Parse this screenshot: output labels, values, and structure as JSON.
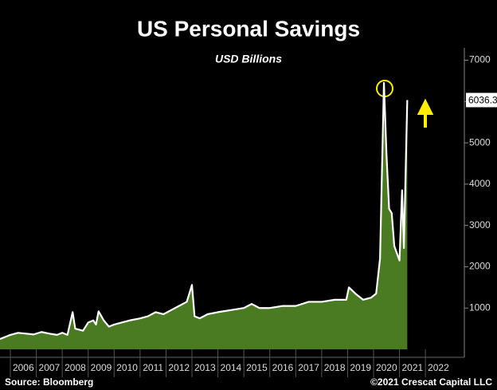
{
  "chart_data": {
    "type": "area",
    "title": "US Personal Savings",
    "subtitle": "USD Billions",
    "source": "Source: Bloomberg",
    "copyright": "©2021 Crescat Capital LLC",
    "color": "#4a7a22",
    "line_color": "#ffffff",
    "x": [
      2005.6,
      2006.0,
      2006.3,
      2006.6,
      2006.9,
      2007.2,
      2007.5,
      2007.8,
      2008.0,
      2008.2,
      2008.4,
      2008.5,
      2008.8,
      2009.0,
      2009.2,
      2009.3,
      2009.4,
      2009.6,
      2009.8,
      2010.0,
      2010.3,
      2010.6,
      2011.0,
      2011.3,
      2011.6,
      2011.9,
      2012.2,
      2012.5,
      2012.8,
      2013.0,
      2013.1,
      2013.3,
      2013.6,
      2014.0,
      2014.5,
      2015.0,
      2015.3,
      2015.6,
      2016.0,
      2016.5,
      2017.0,
      2017.5,
      2018.0,
      2018.5,
      2018.95,
      2019.05,
      2019.3,
      2019.6,
      2019.9,
      2020.1,
      2020.25,
      2020.4,
      2020.5,
      2020.6,
      2020.7,
      2020.8,
      2021.0,
      2021.1,
      2021.17,
      2021.3
    ],
    "values": [
      250,
      350,
      400,
      380,
      360,
      420,
      380,
      350,
      400,
      350,
      900,
      500,
      450,
      650,
      700,
      600,
      920,
      700,
      550,
      600,
      650,
      700,
      750,
      800,
      900,
      850,
      950,
      1050,
      1150,
      1560,
      800,
      750,
      850,
      900,
      950,
      1000,
      1100,
      1000,
      1000,
      1050,
      1050,
      1150,
      1150,
      1200,
      1200,
      1500,
      1350,
      1200,
      1250,
      1350,
      2200,
      6450,
      4700,
      3400,
      3300,
      2500,
      2150,
      3850,
      2450,
      6036.3
    ],
    "xlim": [
      2005.6,
      2023.5
    ],
    "ylim": [
      0,
      7300
    ],
    "xticks": [
      2006,
      2007,
      2008,
      2009,
      2010,
      2011,
      2012,
      2013,
      2014,
      2015,
      2016,
      2017,
      2018,
      2019,
      2020,
      2021,
      2022
    ],
    "yticks": [
      1000,
      2000,
      3000,
      4000,
      5000,
      6000,
      7000
    ],
    "axis_side": "right"
  }
}
